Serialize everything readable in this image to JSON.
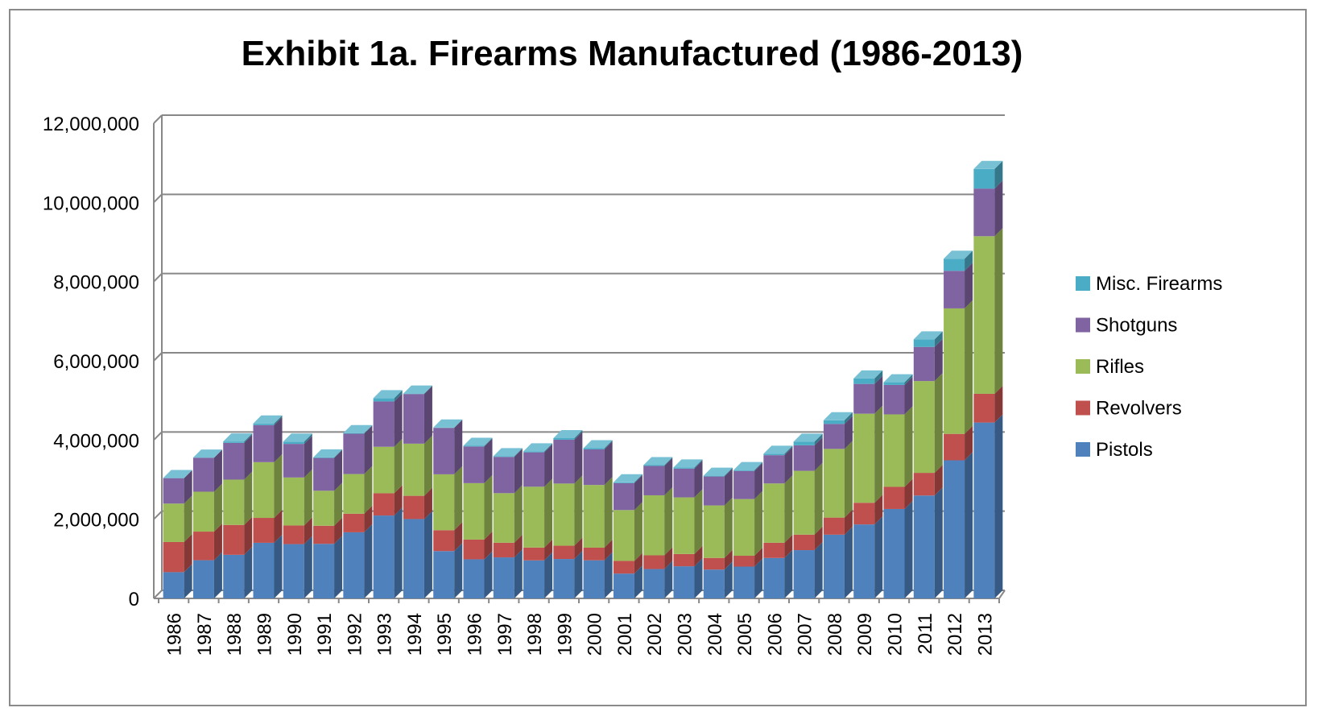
{
  "chart_data": {
    "type": "bar",
    "stacked": true,
    "three_d": true,
    "title": "Exhibit 1a. Firearms Manufactured (1986-2013)",
    "xlabel": "",
    "ylabel": "",
    "ylim": [
      0,
      12000000
    ],
    "yticks": [
      "0",
      "2,000,000",
      "4,000,000",
      "6,000,000",
      "8,000,000",
      "10,000,000",
      "12,000,000"
    ],
    "grid": true,
    "legend_position": "right",
    "categories": [
      "1986",
      "1987",
      "1988",
      "1989",
      "1990",
      "1991",
      "1992",
      "1993",
      "1994",
      "1995",
      "1996",
      "1997",
      "1998",
      "1999",
      "2000",
      "2001",
      "2002",
      "2003",
      "2004",
      "2005",
      "2006",
      "2007",
      "2008",
      "2009",
      "2010",
      "2011",
      "2012",
      "2013"
    ],
    "series": [
      {
        "name": "Pistols",
        "color": "#4f81bd",
        "values": [
          662973,
          964561,
          1101011,
          1404753,
          1371427,
          1378252,
          1669537,
          2093362,
          2004298,
          1195284,
          987528,
          1036077,
          960365,
          995446,
          962901,
          626836,
          741514,
          811660,
          728511,
          803425,
          1021260,
          1219664,
          1609381,
          1868258,
          2258450,
          2598133,
          3487883,
          4441726
        ]
      },
      {
        "name": "Revolvers",
        "color": "#c0504d",
        "values": [
          761414,
          722512,
          754744,
          628573,
          470495,
          456966,
          469413,
          562292,
          586450,
          527664,
          498944,
          370428,
          324390,
          335784,
          318960,
          320143,
          347070,
          309364,
          294099,
          274205,
          385069,
          391334,
          431753,
          547195,
          558927,
          572857,
          667357,
          725282
        ]
      },
      {
        "name": "Rifles",
        "color": "#9bbb59",
        "values": [
          970507,
          1007661,
          1144707,
          1407400,
          1211664,
          883482,
          1001833,
          1173694,
          1316607,
          1411120,
          1424315,
          1251341,
          1535690,
          1569685,
          1583042,
          1284554,
          1515286,
          1430324,
          1325138,
          1431372,
          1496505,
          1610923,
          1734536,
          2248851,
          1830556,
          2318088,
          3168206,
          3979570
        ]
      },
      {
        "name": "Shotguns",
        "color": "#8064a2",
        "values": [
          641482,
          857949,
          928070,
          935541,
          848948,
          828426,
          1018204,
          1144940,
          1254926,
          1173645,
          925732,
          915978,
          868639,
          1106995,
          898442,
          679813,
          741325,
          726078,
          731769,
          709313,
          714618,
          645231,
          630710,
          752699,
          743378,
          862401,
          949010,
          1203072
        ]
      },
      {
        "name": "Misc. Firearms",
        "color": "#4bacc6",
        "values": [
          4558,
          4389,
          35345,
          42126,
          57434,
          15980,
          16849,
          81349,
          10936,
          8629,
          17920,
          19680,
          24506,
          39837,
          30196,
          21309,
          21700,
          30978,
          19508,
          23179,
          35872,
          92564,
          92564,
          138815,
          67929,
          190407,
          306154,
          495142
        ]
      }
    ]
  }
}
